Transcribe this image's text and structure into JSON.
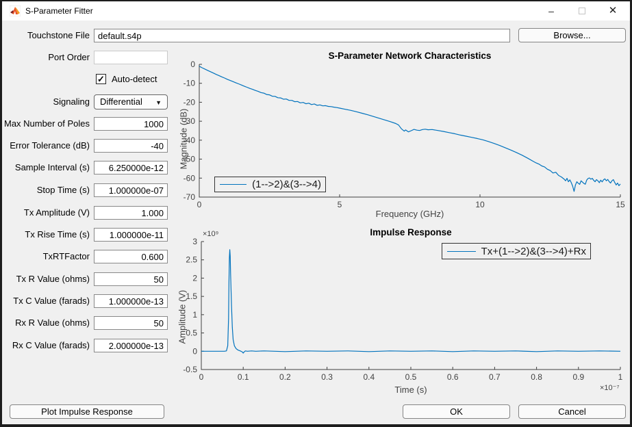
{
  "window": {
    "title": "S-Parameter Fitter",
    "minimize_glyph": "–",
    "close_glyph": "✕"
  },
  "form": {
    "touchstone": {
      "label": "Touchstone File",
      "value": "default.s4p"
    },
    "browse_label": "Browse...",
    "port_order": {
      "label": "Port Order",
      "value": ""
    },
    "auto_detect": {
      "label": "Auto-detect",
      "checked": true,
      "check_glyph": "✓"
    },
    "signaling": {
      "label": "Signaling",
      "value": "Differential",
      "arrow_glyph": "▼"
    },
    "fields": [
      {
        "label": "Max Number of Poles",
        "value": "1000"
      },
      {
        "label": "Error Tolerance (dB)",
        "value": "-40"
      },
      {
        "label": "Sample Interval (s)",
        "value": "6.250000e-12"
      },
      {
        "label": "Stop Time (s)",
        "value": "1.000000e-07"
      },
      {
        "label": "Tx Amplitude (V)",
        "value": "1.000"
      },
      {
        "label": "Tx Rise Time (s)",
        "value": "1.000000e-11"
      },
      {
        "label": "TxRTFactor",
        "value": "0.600"
      },
      {
        "label": "Tx R Value (ohms)",
        "value": "50"
      },
      {
        "label": "Tx C Value (farads)",
        "value": "1.000000e-13"
      },
      {
        "label": "Rx R Value (ohms)",
        "value": "50"
      },
      {
        "label": "Rx C Value (farads)",
        "value": "2.000000e-13"
      }
    ]
  },
  "buttons": {
    "plot_impulse": "Plot Impulse Response",
    "ok": "OK",
    "cancel": "Cancel"
  },
  "colors": {
    "line": "#0072BD",
    "bg": "#f0f0f0",
    "axis": "#3f3f3f",
    "tick_text": "#424242"
  },
  "chart_data": [
    {
      "type": "line",
      "title": "S-Parameter Network Characteristics",
      "xlabel": "Frequency (GHz)",
      "ylabel": "Magnitude (dB)",
      "xlim": [
        0,
        15
      ],
      "ylim": [
        -70,
        0
      ],
      "xticks": [
        0,
        5,
        10,
        15
      ],
      "xtick_labels": [
        "0",
        "5",
        "10",
        "15"
      ],
      "yticks": [
        0,
        -10,
        -20,
        -30,
        -40,
        -50,
        -60,
        -70
      ],
      "ytick_labels": [
        "0",
        "-10",
        "-20",
        "-30",
        "-40",
        "-50",
        "-60",
        "-70"
      ],
      "grid": false,
      "legend": {
        "label": "(1-->2)&(3-->4)",
        "position": "bottom-left"
      },
      "series": [
        {
          "name": "(1-->2)&(3-->4)",
          "points": [
            [
              0,
              -1.0
            ],
            [
              0.1,
              -1.8
            ],
            [
              0.2,
              -2.5
            ],
            [
              0.3,
              -3.2
            ],
            [
              0.4,
              -3.9
            ],
            [
              0.5,
              -4.6
            ],
            [
              0.6,
              -5.3
            ],
            [
              0.7,
              -5.9
            ],
            [
              0.8,
              -6.6
            ],
            [
              0.9,
              -7.2
            ],
            [
              1.0,
              -7.9
            ],
            [
              1.1,
              -8.5
            ],
            [
              1.2,
              -9.1
            ],
            [
              1.3,
              -9.7
            ],
            [
              1.4,
              -10.3
            ],
            [
              1.5,
              -10.9
            ],
            [
              1.6,
              -11.5
            ],
            [
              1.7,
              -12.1
            ],
            [
              1.8,
              -12.7
            ],
            [
              1.9,
              -13.2
            ],
            [
              2.0,
              -13.8
            ],
            [
              2.1,
              -14.3
            ],
            [
              2.2,
              -14.9
            ],
            [
              2.3,
              -15.2
            ],
            [
              2.4,
              -15.9
            ],
            [
              2.5,
              -16.1
            ],
            [
              2.6,
              -16.8
            ],
            [
              2.7,
              -16.9
            ],
            [
              2.8,
              -17.6
            ],
            [
              2.9,
              -17.7
            ],
            [
              3.0,
              -18.4
            ],
            [
              3.1,
              -18.3
            ],
            [
              3.2,
              -19.0
            ],
            [
              3.3,
              -19.0
            ],
            [
              3.4,
              -19.7
            ],
            [
              3.5,
              -19.6
            ],
            [
              3.6,
              -20.3
            ],
            [
              3.7,
              -20.1
            ],
            [
              3.8,
              -20.8
            ],
            [
              3.9,
              -20.5
            ],
            [
              4.0,
              -21.2
            ],
            [
              4.1,
              -20.9
            ],
            [
              4.2,
              -21.6
            ],
            [
              4.3,
              -21.4
            ],
            [
              4.4,
              -21.9
            ],
            [
              4.5,
              -21.8
            ],
            [
              4.6,
              -22.2
            ],
            [
              4.7,
              -22.3
            ],
            [
              4.8,
              -22.6
            ],
            [
              4.9,
              -22.8
            ],
            [
              5.0,
              -23.1
            ],
            [
              5.2,
              -23.7
            ],
            [
              5.4,
              -24.3
            ],
            [
              5.6,
              -25.0
            ],
            [
              5.8,
              -25.8
            ],
            [
              6.0,
              -26.6
            ],
            [
              6.2,
              -27.5
            ],
            [
              6.4,
              -28.4
            ],
            [
              6.6,
              -29.3
            ],
            [
              6.8,
              -30.2
            ],
            [
              7.0,
              -31.2
            ],
            [
              7.1,
              -32.0
            ],
            [
              7.2,
              -34.0
            ],
            [
              7.3,
              -35.2
            ],
            [
              7.35,
              -34.6
            ],
            [
              7.45,
              -35.6
            ],
            [
              7.55,
              -35.0
            ],
            [
              7.65,
              -34.3
            ],
            [
              7.75,
              -34.7
            ],
            [
              7.85,
              -34.9
            ],
            [
              7.95,
              -34.4
            ],
            [
              8.05,
              -34.2
            ],
            [
              8.15,
              -34.5
            ],
            [
              8.3,
              -34.4
            ],
            [
              8.5,
              -34.9
            ],
            [
              8.7,
              -35.4
            ],
            [
              8.9,
              -36.0
            ],
            [
              9.1,
              -36.6
            ],
            [
              9.3,
              -37.3
            ],
            [
              9.5,
              -37.9
            ],
            [
              9.7,
              -38.5
            ],
            [
              9.9,
              -39.1
            ],
            [
              10.1,
              -39.8
            ],
            [
              10.3,
              -40.7
            ],
            [
              10.5,
              -41.7
            ],
            [
              10.7,
              -42.8
            ],
            [
              10.9,
              -44.0
            ],
            [
              11.1,
              -45.2
            ],
            [
              11.3,
              -46.5
            ],
            [
              11.5,
              -47.9
            ],
            [
              11.7,
              -49.5
            ],
            [
              11.9,
              -51.2
            ],
            [
              12.0,
              -52.0
            ],
            [
              12.1,
              -52.6
            ],
            [
              12.2,
              -53.6
            ],
            [
              12.3,
              -54.1
            ],
            [
              12.4,
              -55.3
            ],
            [
              12.5,
              -56.0
            ],
            [
              12.6,
              -57.3
            ],
            [
              12.7,
              -56.9
            ],
            [
              12.8,
              -58.6
            ],
            [
              12.9,
              -59.4
            ],
            [
              13.0,
              -60.6
            ],
            [
              13.05,
              -61.4
            ],
            [
              13.1,
              -60.1
            ],
            [
              13.15,
              -61.9
            ],
            [
              13.2,
              -60.9
            ],
            [
              13.25,
              -62.4
            ],
            [
              13.3,
              -64.2
            ],
            [
              13.35,
              -67.0
            ],
            [
              13.4,
              -63.6
            ],
            [
              13.45,
              -61.9
            ],
            [
              13.5,
              -62.7
            ],
            [
              13.55,
              -63.3
            ],
            [
              13.6,
              -61.4
            ],
            [
              13.65,
              -62.1
            ],
            [
              13.7,
              -62.8
            ],
            [
              13.75,
              -63.2
            ],
            [
              13.8,
              -61.1
            ],
            [
              13.85,
              -60.2
            ],
            [
              13.9,
              -59.9
            ],
            [
              13.95,
              -60.6
            ],
            [
              14.0,
              -60.1
            ],
            [
              14.05,
              -61.2
            ],
            [
              14.1,
              -61.9
            ],
            [
              14.15,
              -60.8
            ],
            [
              14.2,
              -61.4
            ],
            [
              14.25,
              -62.4
            ],
            [
              14.3,
              -61.1
            ],
            [
              14.35,
              -62.0
            ],
            [
              14.4,
              -60.9
            ],
            [
              14.45,
              -60.4
            ],
            [
              14.5,
              -61.4
            ],
            [
              14.55,
              -60.7
            ],
            [
              14.6,
              -61.8
            ],
            [
              14.65,
              -62.6
            ],
            [
              14.7,
              -61.4
            ],
            [
              14.75,
              -60.8
            ],
            [
              14.8,
              -62.3
            ],
            [
              14.85,
              -63.6
            ],
            [
              14.9,
              -62.6
            ],
            [
              14.95,
              -64.0
            ],
            [
              15.0,
              -63.1
            ]
          ]
        }
      ]
    },
    {
      "type": "line",
      "title": "Impulse Response",
      "xlabel": "Time (s)",
      "ylabel": "Amplitude (V)",
      "x_multiplier": "×10⁻⁷",
      "y_multiplier": "×10⁹",
      "xlim": [
        0,
        1
      ],
      "ylim": [
        -0.5,
        3
      ],
      "xticks": [
        0,
        0.1,
        0.2,
        0.3,
        0.4,
        0.5,
        0.6,
        0.7,
        0.8,
        0.9,
        1
      ],
      "xtick_labels": [
        "0",
        "0.1",
        "0.2",
        "0.3",
        "0.4",
        "0.5",
        "0.6",
        "0.7",
        "0.8",
        "0.9",
        "1"
      ],
      "yticks": [
        -0.5,
        0,
        0.5,
        1,
        1.5,
        2,
        2.5,
        3
      ],
      "ytick_labels": [
        "-0.5",
        "0",
        "0.5",
        "1",
        "1.5",
        "2",
        "2.5",
        "3"
      ],
      "grid": false,
      "legend": {
        "label": "Tx+(1-->2)&(3-->4)+Rx",
        "position": "top-right"
      },
      "series": [
        {
          "name": "Tx+(1-->2)&(3-->4)+Rx",
          "points": [
            [
              0,
              0
            ],
            [
              0.03,
              0
            ],
            [
              0.055,
              0
            ],
            [
              0.06,
              0.01
            ],
            [
              0.063,
              0.15
            ],
            [
              0.065,
              0.9
            ],
            [
              0.066,
              1.9
            ],
            [
              0.067,
              2.55
            ],
            [
              0.068,
              2.78
            ],
            [
              0.069,
              2.6
            ],
            [
              0.07,
              2.1
            ],
            [
              0.072,
              1.25
            ],
            [
              0.074,
              0.65
            ],
            [
              0.076,
              0.32
            ],
            [
              0.079,
              0.15
            ],
            [
              0.083,
              0.07
            ],
            [
              0.088,
              0.03
            ],
            [
              0.093,
              0.01
            ],
            [
              0.098,
              -0.02
            ],
            [
              0.1,
              -0.05
            ],
            [
              0.102,
              -0.02
            ],
            [
              0.105,
              0.01
            ],
            [
              0.11,
              0
            ],
            [
              0.12,
              0.01
            ],
            [
              0.13,
              0
            ],
            [
              0.15,
              0.01
            ],
            [
              0.2,
              -0.01
            ],
            [
              0.25,
              0.01
            ],
            [
              0.3,
              0
            ],
            [
              0.35,
              0.01
            ],
            [
              0.4,
              -0.01
            ],
            [
              0.45,
              0.01
            ],
            [
              0.5,
              0
            ],
            [
              0.55,
              0.01
            ],
            [
              0.6,
              -0.01
            ],
            [
              0.65,
              0.01
            ],
            [
              0.7,
              0
            ],
            [
              0.75,
              0.01
            ],
            [
              0.8,
              -0.01
            ],
            [
              0.85,
              0.01
            ],
            [
              0.9,
              0
            ],
            [
              0.95,
              0.01
            ],
            [
              1.0,
              0
            ]
          ]
        }
      ]
    }
  ]
}
